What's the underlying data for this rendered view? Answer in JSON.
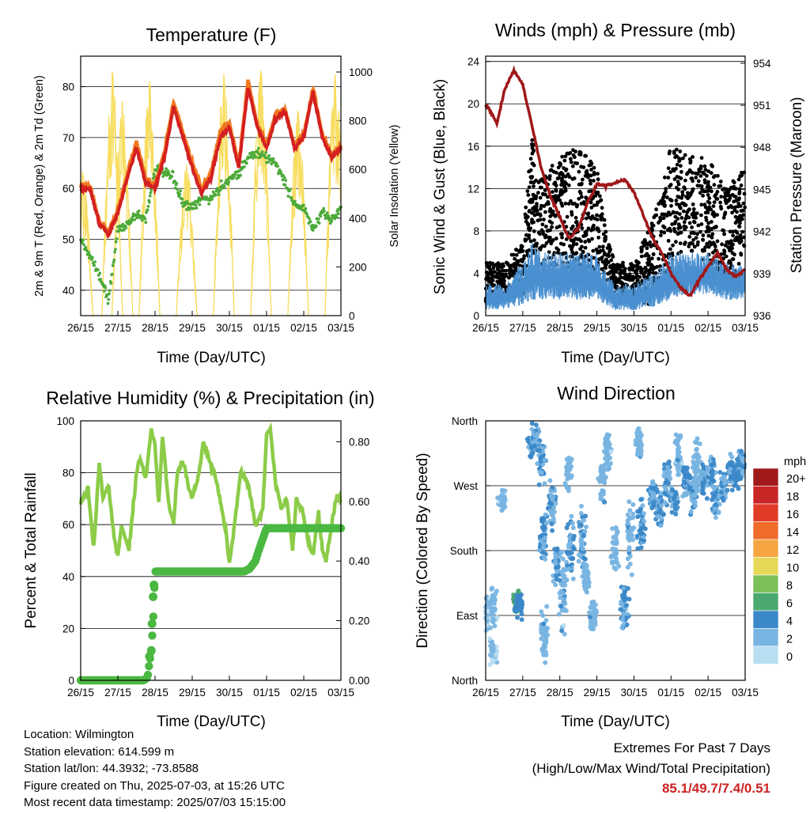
{
  "x_ticks": [
    "26/15",
    "27/15",
    "28/15",
    "29/15",
    "30/15",
    "01/15",
    "02/15",
    "03/15"
  ],
  "chart_data": [
    {
      "type": "line",
      "title": "Temperature (F)",
      "xlabel": "Time (Day/UTC)",
      "ylabel": "2m & 9m T (Red, Orange) & 2m Td (Green)",
      "ylabel_right": "Solar Insolation (Yellow)",
      "ylim": [
        35,
        86
      ],
      "y_ticks": [
        40,
        50,
        60,
        70,
        80
      ],
      "ylim_right": [
        0,
        1065
      ],
      "y_ticks_right": [
        0,
        200,
        400,
        600,
        800,
        1000
      ],
      "grid": true,
      "x": [
        0,
        0.25,
        0.5,
        0.75,
        1,
        1.25,
        1.5,
        1.75,
        2,
        2.25,
        2.5,
        2.75,
        3,
        3.25,
        3.5,
        3.75,
        4,
        4.25,
        4.5,
        4.75,
        5,
        5.25,
        5.5,
        5.75,
        6,
        6.25,
        6.5,
        6.75,
        7
      ],
      "series": [
        {
          "key": "t2m",
          "color": "#d42020",
          "values": [
            60,
            60,
            53,
            51,
            55,
            62,
            68,
            61,
            60,
            66,
            76,
            70,
            64,
            59,
            62,
            70,
            72,
            64,
            80,
            72,
            68,
            74,
            75,
            68,
            70,
            79,
            70,
            66,
            68
          ]
        },
        {
          "key": "t9m",
          "color": "#f07820",
          "values": [
            60.5,
            60.5,
            53.5,
            51.5,
            55.5,
            62.8,
            69,
            62,
            60.5,
            67,
            77,
            71,
            65,
            60,
            63,
            71,
            73,
            64.5,
            81,
            72.5,
            68.5,
            74.5,
            75.5,
            68.5,
            70.5,
            79.5,
            70.5,
            66.5,
            68.3
          ]
        },
        {
          "key": "td2m",
          "color": "#4daa3a",
          "values": [
            50,
            47,
            43,
            38,
            52,
            53,
            55,
            54,
            64,
            63,
            62,
            57,
            56,
            58,
            58,
            60,
            62,
            63,
            66,
            67,
            66,
            65,
            61,
            57,
            56,
            52,
            55,
            54,
            56
          ]
        }
      ],
      "solar_peaks": [
        [
          0.05,
          590
        ],
        [
          0.85,
          1000
        ],
        [
          1.12,
          880
        ],
        [
          1.85,
          960
        ],
        [
          2.85,
          620
        ],
        [
          3.85,
          990
        ],
        [
          4.85,
          1005
        ],
        [
          5.85,
          840
        ],
        [
          6.85,
          990
        ]
      ]
    },
    {
      "type": "scatter",
      "title": "Winds (mph) & Pressure (mb)",
      "xlabel": "Time (Day/UTC)",
      "ylabel": "Sonic Wind & Gust (Blue, Black)",
      "ylabel_right": "Station Pressure (Maroon)",
      "ylim": [
        0,
        24.5
      ],
      "y_ticks": [
        0,
        4,
        8,
        12,
        16,
        20,
        24
      ],
      "ylim_right": [
        936,
        954.5
      ],
      "y_ticks_right": [
        936,
        939,
        942,
        945,
        948,
        951,
        954
      ],
      "grid": true,
      "gust_envelope": {
        "x": [
          0,
          0.5,
          1,
          1.25,
          1.5,
          2,
          2.5,
          3,
          3.25,
          3.5,
          4,
          4.5,
          5,
          5.5,
          6,
          6.5,
          7
        ],
        "lo": [
          1,
          1.5,
          2,
          6,
          4,
          4,
          3,
          4,
          2,
          1,
          1,
          1,
          4,
          6,
          5,
          3,
          3
        ],
        "hi": [
          5,
          5,
          7,
          17,
          13,
          15,
          16,
          14,
          8,
          5,
          5,
          9,
          16,
          15,
          15,
          12,
          14
        ]
      },
      "wind_envelope": {
        "x": [
          0,
          0.5,
          1,
          1.25,
          1.5,
          2,
          2.5,
          3,
          3.25,
          3.5,
          4,
          4.5,
          5,
          5.5,
          6,
          6.5,
          7
        ],
        "lo": [
          0.5,
          0.6,
          1,
          1.5,
          1.5,
          1.5,
          1.5,
          1.5,
          1,
          0.5,
          0.5,
          0.8,
          1.5,
          2,
          2,
          1.5,
          1.5
        ],
        "hi": [
          3,
          3,
          5,
          7,
          6,
          6,
          6,
          6,
          4,
          3,
          3,
          4,
          6,
          6,
          6,
          5,
          5
        ]
      },
      "pressure": {
        "color": "#a01818",
        "x": [
          0,
          0.15,
          0.3,
          0.5,
          0.75,
          1,
          1.25,
          1.5,
          1.75,
          2,
          2.25,
          2.5,
          2.75,
          3,
          3.25,
          3.5,
          3.75,
          4,
          4.25,
          4.5,
          4.75,
          5,
          5.25,
          5.5,
          5.75,
          6,
          6.25,
          6.5,
          6.75,
          7
        ],
        "values": [
          951,
          950.5,
          949.7,
          952,
          953.5,
          952.5,
          949.5,
          946.5,
          944.5,
          943,
          941.5,
          942.2,
          944,
          945.4,
          945.2,
          945.5,
          945.7,
          944.8,
          943.2,
          941.5,
          940.5,
          939,
          938,
          937.4,
          938.5,
          939.5,
          940.5,
          939.3,
          938.8,
          939.3
        ]
      }
    },
    {
      "type": "line",
      "title": "Relative Humidity (%) & Precipitation (in)",
      "xlabel": "Time (Day/UTC)",
      "ylabel": "Percent & Total Rainfall",
      "ylim": [
        0,
        100
      ],
      "y_ticks": [
        0,
        20,
        40,
        60,
        80,
        100
      ],
      "ylim_right": [
        0,
        0.87
      ],
      "y_ticks_right": [
        "0.00",
        "0.20",
        "0.40",
        "0.60",
        "0.80"
      ],
      "grid": true,
      "series": [
        {
          "key": "rh",
          "color": "#8ccc48",
          "x": [
            0,
            0.2,
            0.35,
            0.5,
            0.6,
            0.75,
            0.9,
            1,
            1.1,
            1.3,
            1.5,
            1.6,
            1.75,
            1.9,
            2,
            2.1,
            2.2,
            2.35,
            2.5,
            2.6,
            2.75,
            2.9,
            3,
            3.15,
            3.3,
            3.45,
            3.6,
            3.75,
            3.9,
            4,
            4.1,
            4.3,
            4.5,
            4.7,
            4.9,
            5,
            5.1,
            5.25,
            5.4,
            5.55,
            5.7,
            5.8,
            5.95,
            6.1,
            6.25,
            6.4,
            6.5,
            6.6,
            6.75,
            6.9,
            7
          ],
          "values": [
            68,
            74,
            50,
            84,
            70,
            75,
            55,
            48,
            60,
            50,
            80,
            85,
            78,
            97,
            90,
            68,
            95,
            70,
            60,
            80,
            85,
            74,
            70,
            78,
            92,
            85,
            80,
            70,
            58,
            45,
            55,
            80,
            76,
            60,
            66,
            95,
            98,
            75,
            66,
            70,
            50,
            70,
            66,
            55,
            48,
            65,
            50,
            46,
            60,
            72,
            69
          ]
        },
        {
          "key": "precip_cum",
          "color": "#4bb842",
          "x": [
            0,
            1.7,
            1.8,
            1.85,
            1.9,
            1.95,
            2,
            3.4,
            4,
            4.2,
            4.4,
            4.55,
            4.7,
            4.8,
            5,
            7
          ],
          "values": [
            0,
            0,
            0.01,
            0.06,
            0.1,
            0.2,
            0.365,
            0.365,
            0.365,
            0.365,
            0.365,
            0.375,
            0.4,
            0.44,
            0.51,
            0.51
          ]
        }
      ]
    },
    {
      "type": "scatter",
      "title": "Wind Direction",
      "xlabel": "Time (Day/UTC)",
      "ylabel": "Direction (Colored By Speed)",
      "y_ticks": [
        "North",
        "West",
        "South",
        "East",
        "North"
      ],
      "ylim": [
        0,
        360
      ],
      "clusters": [
        [
          0.05,
          95,
          25,
          1.5
        ],
        [
          0.2,
          100,
          30,
          1.5
        ],
        [
          0.2,
          40,
          20,
          1
        ],
        [
          0.45,
          250,
          15,
          1.5
        ],
        [
          0.85,
          110,
          20,
          6
        ],
        [
          0.9,
          105,
          25,
          4
        ],
        [
          1.25,
          330,
          25,
          3
        ],
        [
          1.35,
          340,
          20,
          3
        ],
        [
          1.5,
          300,
          30,
          3
        ],
        [
          1.55,
          200,
          40,
          3
        ],
        [
          1.6,
          60,
          40,
          2
        ],
        [
          1.8,
          240,
          40,
          3
        ],
        [
          1.9,
          160,
          35,
          3
        ],
        [
          2.1,
          120,
          60,
          2
        ],
        [
          2.25,
          290,
          30,
          2
        ],
        [
          2.3,
          180,
          50,
          3
        ],
        [
          2.6,
          200,
          40,
          3
        ],
        [
          2.7,
          140,
          30,
          2
        ],
        [
          2.9,
          90,
          30,
          2
        ],
        [
          3.15,
          280,
          40,
          2
        ],
        [
          3.3,
          320,
          30,
          2
        ],
        [
          3.5,
          180,
          40,
          2
        ],
        [
          3.75,
          100,
          40,
          3
        ],
        [
          3.9,
          200,
          60,
          2
        ],
        [
          4.15,
          330,
          30,
          2
        ],
        [
          4.2,
          210,
          40,
          3
        ],
        [
          4.5,
          260,
          25,
          3
        ],
        [
          4.7,
          240,
          35,
          3
        ],
        [
          4.9,
          280,
          40,
          3
        ],
        [
          5.1,
          250,
          20,
          3
        ],
        [
          5.2,
          310,
          40,
          2
        ],
        [
          5.4,
          280,
          30,
          3
        ],
        [
          5.6,
          260,
          30,
          3
        ],
        [
          5.7,
          300,
          40,
          2
        ],
        [
          5.9,
          280,
          30,
          3
        ],
        [
          6.1,
          290,
          25,
          3
        ],
        [
          6.2,
          250,
          30,
          3
        ],
        [
          6.4,
          270,
          25,
          3
        ],
        [
          6.6,
          290,
          25,
          3
        ],
        [
          6.8,
          285,
          20,
          4
        ],
        [
          6.9,
          300,
          25,
          3
        ]
      ],
      "legend": {
        "title": "mph",
        "labels": [
          "20+",
          "18",
          "16",
          "14",
          "12",
          "10",
          "8",
          "6",
          "4",
          "2",
          "0"
        ],
        "colors": [
          "#a01a1a",
          "#c82626",
          "#e03c28",
          "#f06a2a",
          "#f5a640",
          "#e8d858",
          "#7cc05a",
          "#4aa870",
          "#3a88c8",
          "#78b4e2",
          "#b8def2"
        ]
      }
    }
  ],
  "station": {
    "location": "Location: Wilmington",
    "elevation": "Station elevation: 614.599 m",
    "latlon": "Station lat/lon: 44.3932; -73.8588",
    "created": "Figure created on Thu, 2025-07-03, at 15:26 UTC",
    "recent": "Most recent data timestamp: 2025/07/03 15:15:00"
  },
  "extremes": {
    "title": "Extremes For Past 7 Days",
    "subtitle": "(High/Low/Max Wind/Total Precipitation)",
    "values": "85.1/49.7/7.4/0.51"
  }
}
